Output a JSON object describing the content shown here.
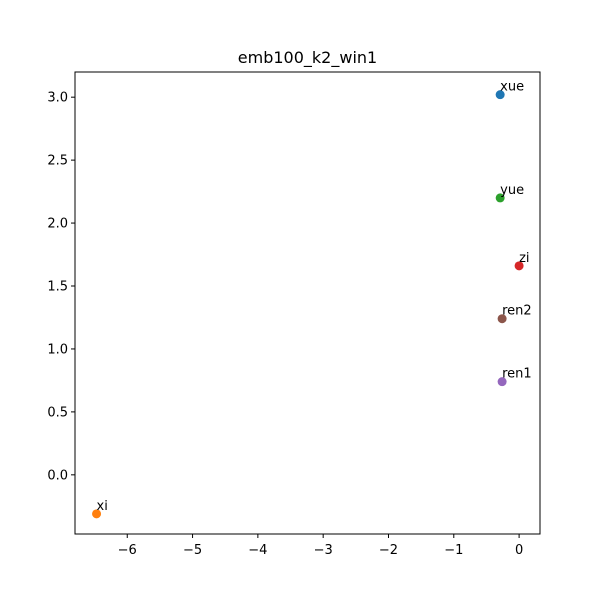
{
  "chart_data": {
    "type": "scatter",
    "title": "emb100_k2_win1",
    "xlabel": "",
    "ylabel": "",
    "xlim": [
      -6.8,
      0.32
    ],
    "ylim": [
      -0.47,
      3.2
    ],
    "xticks": [
      -6,
      -5,
      -4,
      -3,
      -2,
      -1,
      0
    ],
    "xtick_labels": [
      "−6",
      "−5",
      "−4",
      "−3",
      "−2",
      "−1",
      "0"
    ],
    "yticks": [
      0.0,
      0.5,
      1.0,
      1.5,
      2.0,
      2.5,
      3.0
    ],
    "ytick_labels": [
      "0.0",
      "0.5",
      "1.0",
      "1.5",
      "2.0",
      "2.5",
      "3.0"
    ],
    "grid": false,
    "legend": false,
    "points": [
      {
        "label": "xue",
        "x": -0.29,
        "y": 3.02,
        "color": "#1f77b4"
      },
      {
        "label": "xi",
        "x": -6.47,
        "y": -0.31,
        "color": "#ff7f0e"
      },
      {
        "label": "yue",
        "x": -0.29,
        "y": 2.2,
        "color": "#2ca02c"
      },
      {
        "label": "zi",
        "x": 0.0,
        "y": 1.66,
        "color": "#d62728"
      },
      {
        "label": "ren1",
        "x": -0.26,
        "y": 0.74,
        "color": "#9467bd"
      },
      {
        "label": "ren2",
        "x": -0.26,
        "y": 1.24,
        "color": "#8c564b"
      }
    ]
  }
}
